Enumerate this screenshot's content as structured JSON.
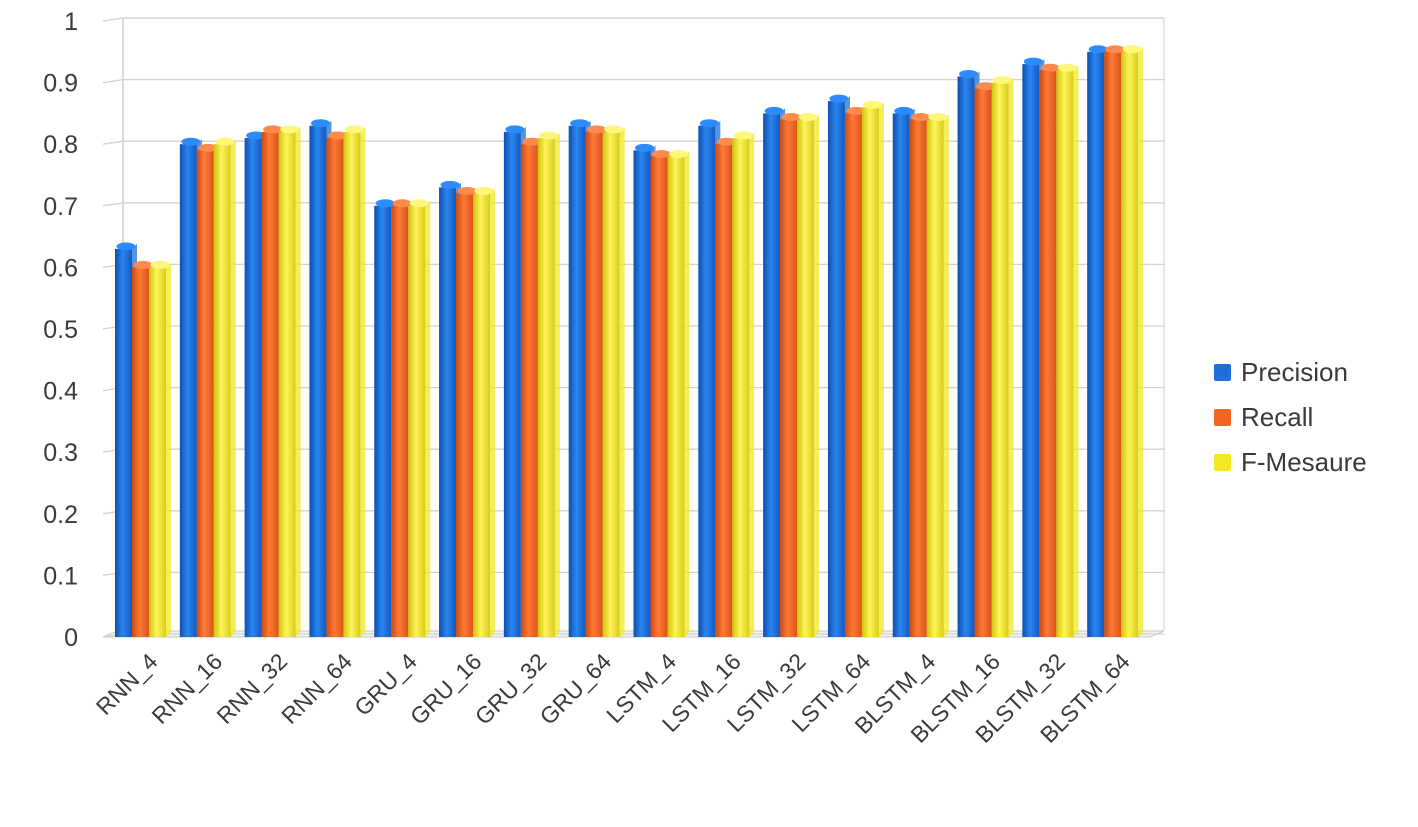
{
  "chart_data": {
    "type": "bar",
    "categories": [
      "RNN_4",
      "RNN_16",
      "RNN_32",
      "RNN_64",
      "GRU_4",
      "GRU_16",
      "GRU_32",
      "GRU_64",
      "LSTM_4",
      "LSTM_16",
      "LSTM_32",
      "LSTM_64",
      "BLSTM_4",
      "BLSTM_16",
      "BLSTM_32",
      "BLSTM_64"
    ],
    "series": [
      {
        "name": "Precision",
        "color": "#1f6fd9",
        "values": [
          0.63,
          0.8,
          0.81,
          0.83,
          0.7,
          0.73,
          0.82,
          0.83,
          0.79,
          0.83,
          0.85,
          0.87,
          0.85,
          0.91,
          0.93,
          0.95
        ]
      },
      {
        "name": "Recall",
        "color": "#f26522",
        "values": [
          0.6,
          0.79,
          0.82,
          0.81,
          0.7,
          0.72,
          0.8,
          0.82,
          0.78,
          0.8,
          0.84,
          0.85,
          0.84,
          0.89,
          0.92,
          0.95
        ]
      },
      {
        "name": "F-Mesaure",
        "color": "#f2e824",
        "values": [
          0.6,
          0.8,
          0.82,
          0.82,
          0.7,
          0.72,
          0.81,
          0.82,
          0.78,
          0.81,
          0.84,
          0.86,
          0.84,
          0.9,
          0.92,
          0.95
        ]
      }
    ],
    "y_ticks": [
      "0",
      "0.1",
      "0.2",
      "0.3",
      "0.4",
      "0.5",
      "0.6",
      "0.7",
      "0.8",
      "0.9",
      "1"
    ],
    "ylim": [
      0,
      1
    ],
    "grid": true,
    "legend_position": "right",
    "title": "",
    "xlabel": "",
    "ylabel": ""
  }
}
